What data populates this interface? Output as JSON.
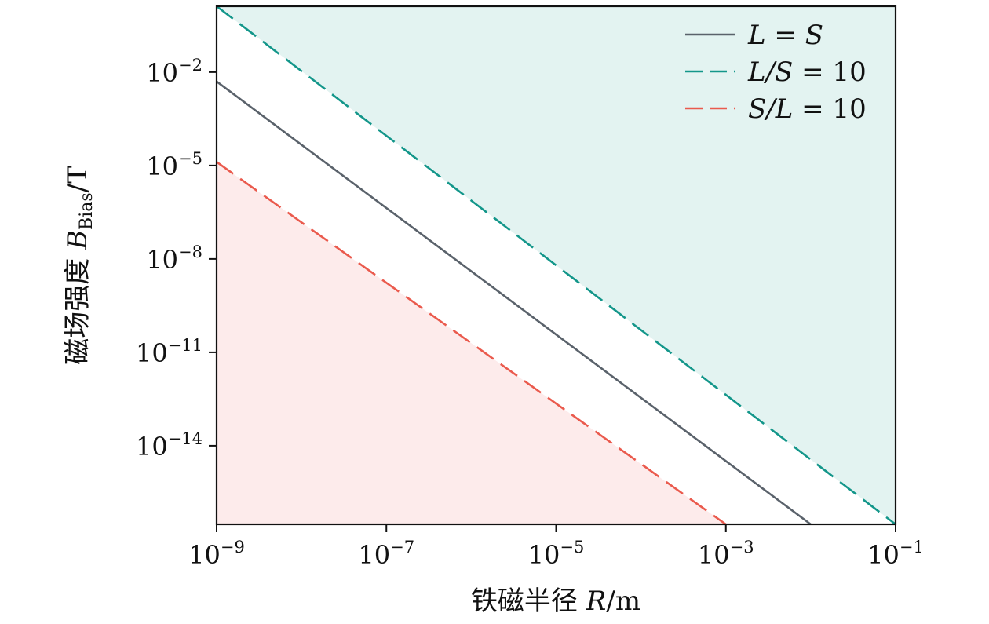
{
  "chart_data": {
    "type": "line",
    "x_scale": "log",
    "y_scale": "log",
    "xlim": [
      1e-09,
      0.1
    ],
    "ylim": [
      3e-17,
      1.3
    ],
    "xlabel": "铁磁半径 R/m",
    "ylabel": "磁场强度 B_Bias/T",
    "x_tick_values": [
      1e-09,
      1e-07,
      1e-05,
      0.001,
      0.1
    ],
    "x_tick_labels": [
      {
        "base": "10",
        "exp": "−9"
      },
      {
        "base": "10",
        "exp": "−7"
      },
      {
        "base": "10",
        "exp": "−5"
      },
      {
        "base": "10",
        "exp": "−3"
      },
      {
        "base": "10",
        "exp": "−1"
      }
    ],
    "y_tick_values": [
      0.01,
      1e-05,
      1e-08,
      1e-11,
      1e-14
    ],
    "y_tick_labels": [
      {
        "base": "10",
        "exp": "−2"
      },
      {
        "base": "10",
        "exp": "−5"
      },
      {
        "base": "10",
        "exp": "−8"
      },
      {
        "base": "10",
        "exp": "−11"
      },
      {
        "base": "10",
        "exp": "−14"
      }
    ],
    "series": [
      {
        "name": "L = S",
        "legend": {
          "l": "L",
          "op": " = ",
          "r": "S"
        },
        "style": "solid",
        "color": "#5a626b",
        "x": [
          1e-09,
          0.01
        ],
        "y": [
          0.005,
          3e-17
        ]
      },
      {
        "name": "L/S = 10",
        "legend": {
          "l": "L/S",
          "op": " = ",
          "r": "10"
        },
        "style": "dashed",
        "color": "#13968a",
        "x": [
          1e-09,
          0.1
        ],
        "y": [
          1.3,
          3e-17
        ]
      },
      {
        "name": "S/L = 10",
        "legend": {
          "l": "S/L",
          "op": " = ",
          "r": "10"
        },
        "style": "dashed",
        "color": "#ea5a4d",
        "x": [
          1e-09,
          0.001
        ],
        "y": [
          1.3e-05,
          3e-17
        ]
      }
    ],
    "shaded_regions": [
      {
        "name": "above L/S = 10",
        "color": "#e3f3f1"
      },
      {
        "name": "below S/L = 10",
        "color": "#fdebeb"
      }
    ],
    "legend_position": "top-right",
    "grid": false
  },
  "labels": {
    "x_title_cn": "铁磁半径 ",
    "x_title_var": "R",
    "x_title_unit": "/m",
    "y_title_cn": "磁场强度 ",
    "y_title_var": "B",
    "y_title_sub": "Bias",
    "y_title_unit": "/T"
  }
}
